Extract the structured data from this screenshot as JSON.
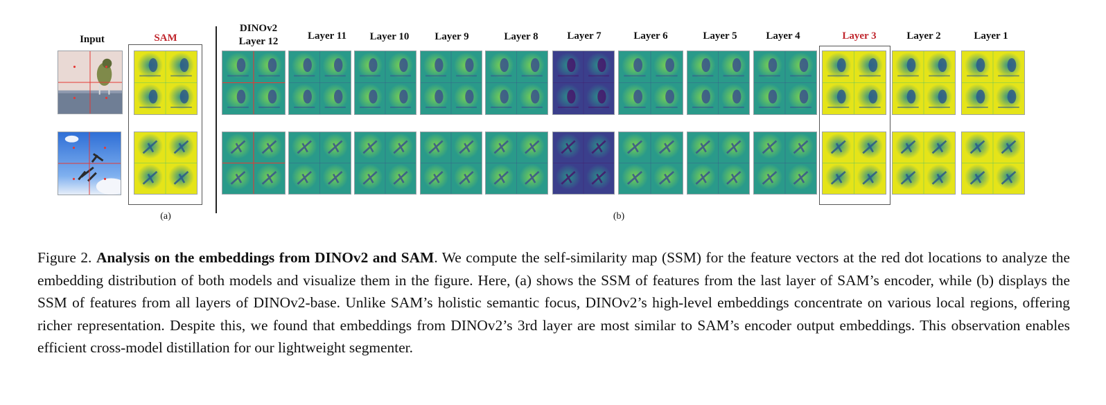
{
  "labels": {
    "input": "Input",
    "sam": "SAM",
    "dino_line1": "DINOv2",
    "dino_line2": "Layer 12",
    "layers": [
      "Layer 11",
      "Layer 10",
      "Layer 9",
      "Layer 8",
      "Layer 7",
      "Layer 6",
      "Layer 5",
      "Layer 4",
      "Layer 3",
      "Layer 2",
      "Layer 1"
    ],
    "sub_a": "(a)",
    "sub_b": "(b)"
  },
  "colors": {
    "highlight_red": "#c0262d",
    "viridis_dark": "#46166b",
    "viridis_mid": "#2c8f8a",
    "viridis_bright": "#e8e61d"
  },
  "caption": {
    "prefix": "Figure 2.",
    "title": "Analysis on the embeddings from DINOv2 and SAM",
    "body": ". We compute the self-similarity map (SSM) for the feature vectors at the red dot locations to analyze the embedding distribution of both models and visualize them in the figure. Here, (a) shows the SSM of features from the last layer of SAM’s encoder, while (b) displays the SSM of features from all layers of DINOv2-base. Unlike SAM’s holistic semantic focus, DINOv2’s high-level embeddings concentrate on various local regions, offering richer representation. Despite this, we found that embeddings from DINOv2’s 3rd layer are most similar to SAM’s encoder output embeddings. This observation enables efficient cross-model distillation for our lightweight segmenter."
  }
}
